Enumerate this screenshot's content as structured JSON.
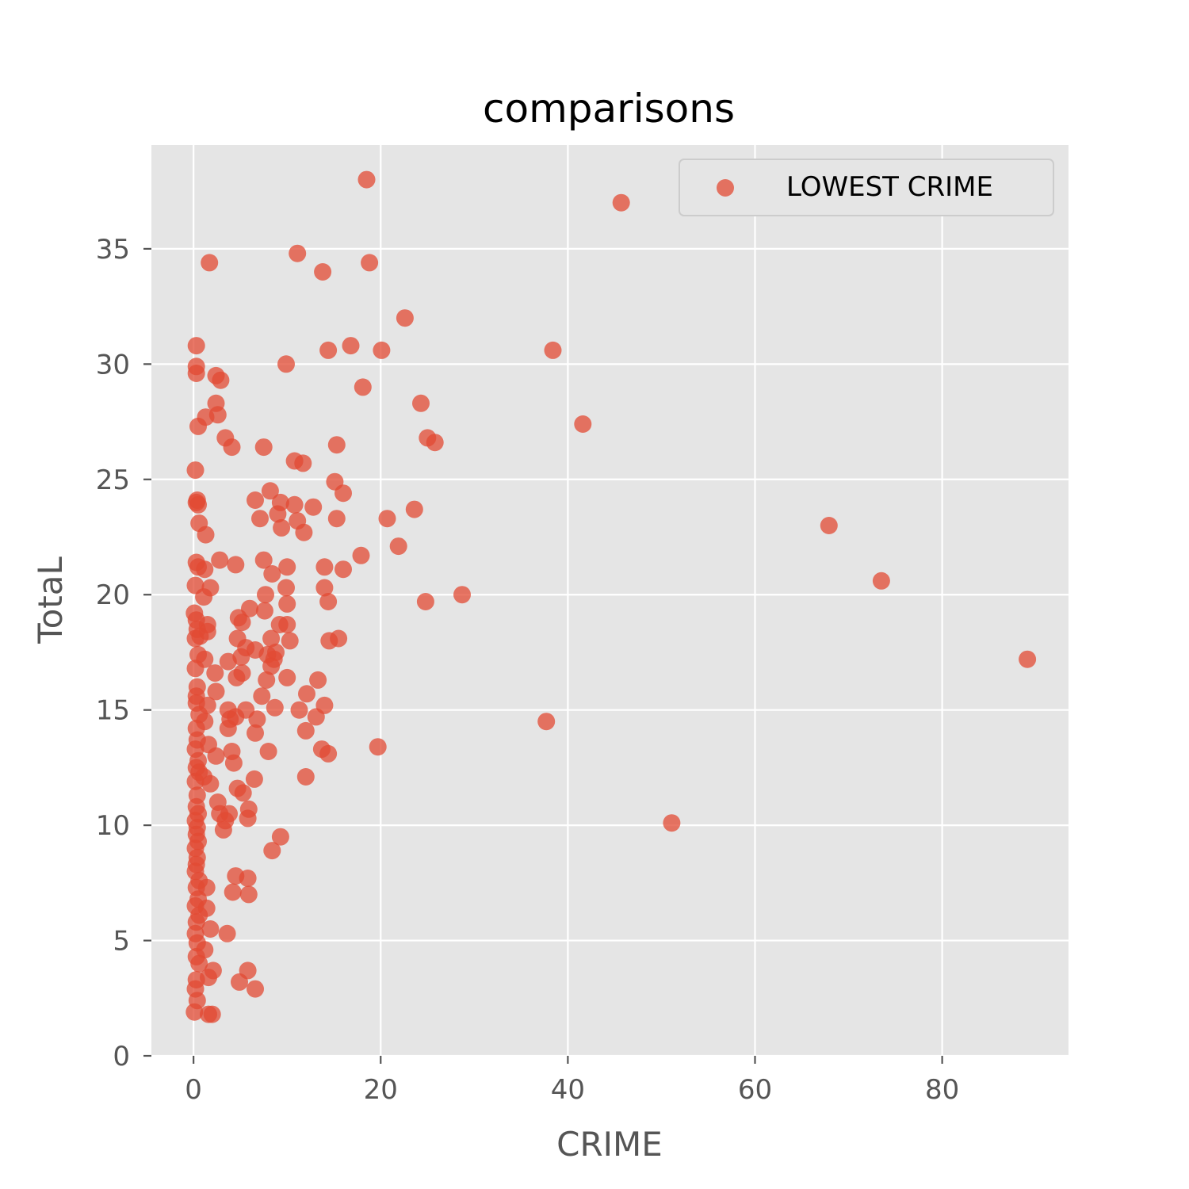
{
  "chart_data": {
    "type": "scatter",
    "title": "comparisons",
    "xlabel": "CRIME",
    "ylabel": "TotaL",
    "xlim": [
      -4.5,
      93.5
    ],
    "ylim": [
      0,
      39.5
    ],
    "xticks": [
      0,
      20,
      40,
      60,
      80
    ],
    "yticks": [
      0,
      5,
      10,
      15,
      20,
      25,
      30,
      35
    ],
    "grid": true,
    "legend_position": "top-right",
    "colors": {
      "point": "#E24A33",
      "background": "#E5E5E5",
      "grid": "#FFFFFF"
    },
    "series": [
      {
        "name": "LOWEST CRIME",
        "points": [
          [
            18.5,
            38.0
          ],
          [
            45.7,
            37.0
          ],
          [
            1.7,
            34.4
          ],
          [
            11.1,
            34.8
          ],
          [
            13.8,
            34.0
          ],
          [
            18.8,
            34.4
          ],
          [
            22.6,
            32.0
          ],
          [
            0.3,
            30.8
          ],
          [
            14.4,
            30.6
          ],
          [
            16.8,
            30.8
          ],
          [
            20.1,
            30.6
          ],
          [
            38.4,
            30.6
          ],
          [
            0.3,
            29.9
          ],
          [
            0.3,
            29.6
          ],
          [
            2.4,
            29.5
          ],
          [
            2.9,
            29.3
          ],
          [
            9.9,
            30.0
          ],
          [
            18.1,
            29.0
          ],
          [
            2.4,
            28.3
          ],
          [
            2.6,
            27.8
          ],
          [
            1.3,
            27.7
          ],
          [
            0.5,
            27.3
          ],
          [
            24.3,
            28.3
          ],
          [
            41.6,
            27.4
          ],
          [
            3.4,
            26.8
          ],
          [
            4.1,
            26.4
          ],
          [
            7.5,
            26.4
          ],
          [
            10.8,
            25.8
          ],
          [
            11.7,
            25.7
          ],
          [
            15.3,
            26.5
          ],
          [
            25.0,
            26.8
          ],
          [
            25.8,
            26.6
          ],
          [
            0.2,
            25.4
          ],
          [
            15.1,
            24.9
          ],
          [
            8.2,
            24.5
          ],
          [
            16.0,
            24.4
          ],
          [
            0.4,
            24.1
          ],
          [
            0.3,
            24.0
          ],
          [
            0.5,
            23.9
          ],
          [
            6.6,
            24.1
          ],
          [
            9.3,
            24.0
          ],
          [
            10.8,
            23.9
          ],
          [
            12.8,
            23.8
          ],
          [
            23.6,
            23.7
          ],
          [
            9.0,
            23.5
          ],
          [
            7.1,
            23.3
          ],
          [
            11.1,
            23.2
          ],
          [
            15.3,
            23.3
          ],
          [
            20.7,
            23.3
          ],
          [
            67.9,
            23.0
          ],
          [
            0.6,
            23.1
          ],
          [
            1.3,
            22.6
          ],
          [
            9.4,
            22.9
          ],
          [
            11.8,
            22.7
          ],
          [
            21.9,
            22.1
          ],
          [
            17.9,
            21.7
          ],
          [
            0.3,
            21.4
          ],
          [
            0.5,
            21.2
          ],
          [
            1.2,
            21.1
          ],
          [
            2.8,
            21.5
          ],
          [
            4.5,
            21.3
          ],
          [
            7.5,
            21.5
          ],
          [
            8.4,
            20.9
          ],
          [
            10.0,
            21.2
          ],
          [
            14.0,
            21.2
          ],
          [
            16.0,
            21.1
          ],
          [
            0.2,
            20.4
          ],
          [
            1.8,
            20.3
          ],
          [
            14.0,
            20.3
          ],
          [
            73.5,
            20.6
          ],
          [
            28.7,
            20.0
          ],
          [
            24.8,
            19.7
          ],
          [
            1.1,
            19.9
          ],
          [
            7.7,
            20.0
          ],
          [
            9.9,
            20.3
          ],
          [
            14.4,
            19.7
          ],
          [
            10.0,
            19.6
          ],
          [
            6.0,
            19.4
          ],
          [
            7.6,
            19.3
          ],
          [
            0.1,
            19.2
          ],
          [
            0.3,
            18.9
          ],
          [
            4.8,
            19.0
          ],
          [
            5.2,
            18.8
          ],
          [
            1.5,
            18.7
          ],
          [
            0.4,
            18.5
          ],
          [
            0.7,
            18.2
          ],
          [
            1.5,
            18.4
          ],
          [
            8.3,
            18.1
          ],
          [
            9.2,
            18.7
          ],
          [
            10.0,
            18.7
          ],
          [
            10.3,
            18.0
          ],
          [
            14.5,
            18.0
          ],
          [
            15.5,
            18.1
          ],
          [
            4.7,
            18.1
          ],
          [
            0.2,
            18.1
          ],
          [
            5.6,
            17.7
          ],
          [
            6.6,
            17.6
          ],
          [
            7.9,
            17.4
          ],
          [
            8.8,
            17.5
          ],
          [
            89.1,
            17.2
          ],
          [
            0.5,
            17.4
          ],
          [
            1.2,
            17.2
          ],
          [
            3.7,
            17.1
          ],
          [
            5.1,
            17.3
          ],
          [
            8.6,
            17.2
          ],
          [
            8.3,
            16.9
          ],
          [
            0.2,
            16.8
          ],
          [
            2.3,
            16.6
          ],
          [
            4.6,
            16.4
          ],
          [
            5.2,
            16.6
          ],
          [
            7.8,
            16.3
          ],
          [
            10.0,
            16.4
          ],
          [
            13.3,
            16.3
          ],
          [
            0.4,
            16.0
          ],
          [
            2.4,
            15.8
          ],
          [
            0.3,
            15.6
          ],
          [
            7.3,
            15.6
          ],
          [
            12.1,
            15.7
          ],
          [
            1.5,
            15.2
          ],
          [
            0.3,
            15.3
          ],
          [
            8.7,
            15.1
          ],
          [
            11.3,
            15.0
          ],
          [
            14.0,
            15.2
          ],
          [
            3.7,
            15.0
          ],
          [
            5.6,
            15.0
          ],
          [
            0.6,
            14.8
          ],
          [
            3.9,
            14.6
          ],
          [
            4.5,
            14.7
          ],
          [
            6.8,
            14.6
          ],
          [
            13.1,
            14.7
          ],
          [
            37.7,
            14.5
          ],
          [
            1.2,
            14.5
          ],
          [
            0.3,
            14.2
          ],
          [
            3.7,
            14.2
          ],
          [
            12.0,
            14.1
          ],
          [
            6.6,
            14.0
          ],
          [
            0.4,
            13.7
          ],
          [
            1.6,
            13.5
          ],
          [
            19.7,
            13.4
          ],
          [
            0.2,
            13.3
          ],
          [
            4.1,
            13.2
          ],
          [
            8.0,
            13.2
          ],
          [
            13.7,
            13.3
          ],
          [
            14.4,
            13.1
          ],
          [
            2.4,
            13.0
          ],
          [
            0.5,
            12.8
          ],
          [
            4.3,
            12.7
          ],
          [
            0.3,
            12.5
          ],
          [
            0.6,
            12.3
          ],
          [
            1.1,
            12.1
          ],
          [
            12.0,
            12.1
          ],
          [
            6.5,
            12.0
          ],
          [
            0.2,
            11.9
          ],
          [
            1.8,
            11.8
          ],
          [
            4.7,
            11.6
          ],
          [
            5.3,
            11.4
          ],
          [
            0.4,
            11.3
          ],
          [
            2.6,
            11.0
          ],
          [
            0.3,
            10.8
          ],
          [
            5.9,
            10.7
          ],
          [
            0.5,
            10.5
          ],
          [
            2.8,
            10.5
          ],
          [
            3.8,
            10.5
          ],
          [
            5.8,
            10.3
          ],
          [
            0.2,
            10.2
          ],
          [
            3.4,
            10.2
          ],
          [
            51.1,
            10.1
          ],
          [
            0.4,
            9.9
          ],
          [
            3.2,
            9.8
          ],
          [
            0.3,
            9.6
          ],
          [
            9.3,
            9.5
          ],
          [
            0.5,
            9.3
          ],
          [
            0.2,
            9.0
          ],
          [
            8.4,
            8.9
          ],
          [
            0.4,
            8.6
          ],
          [
            0.3,
            8.3
          ],
          [
            0.2,
            8.0
          ],
          [
            4.5,
            7.8
          ],
          [
            5.8,
            7.7
          ],
          [
            0.6,
            7.6
          ],
          [
            1.4,
            7.3
          ],
          [
            0.3,
            7.3
          ],
          [
            4.2,
            7.1
          ],
          [
            5.9,
            7.0
          ],
          [
            0.5,
            6.8
          ],
          [
            0.2,
            6.5
          ],
          [
            1.4,
            6.4
          ],
          [
            0.6,
            6.1
          ],
          [
            0.3,
            5.8
          ],
          [
            1.8,
            5.5
          ],
          [
            0.2,
            5.3
          ],
          [
            3.6,
            5.3
          ],
          [
            0.4,
            4.9
          ],
          [
            1.2,
            4.6
          ],
          [
            0.3,
            4.3
          ],
          [
            0.6,
            4.0
          ],
          [
            2.1,
            3.7
          ],
          [
            5.8,
            3.7
          ],
          [
            1.6,
            3.4
          ],
          [
            0.3,
            3.3
          ],
          [
            4.9,
            3.2
          ],
          [
            6.6,
            2.9
          ],
          [
            0.2,
            2.9
          ],
          [
            0.4,
            2.4
          ],
          [
            0.1,
            1.9
          ],
          [
            1.6,
            1.8
          ],
          [
            2.0,
            1.8
          ]
        ]
      }
    ]
  }
}
